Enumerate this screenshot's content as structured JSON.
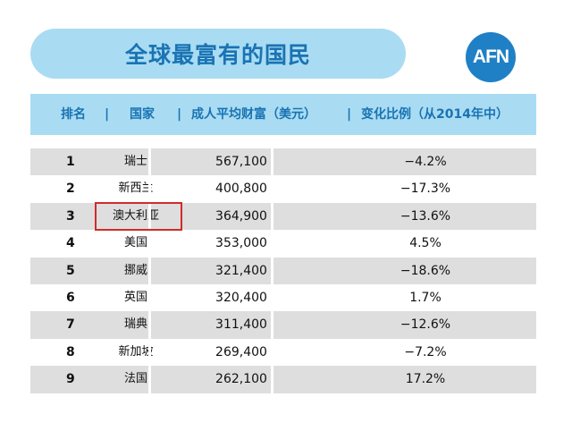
{
  "title": "全球最富有的国民",
  "logo_text": "AFN",
  "header": {
    "rank": "排名",
    "separator": "|",
    "country": "国家",
    "wealth": "成人平均财富（美元）",
    "change": "变化比例（从2014年中）"
  },
  "rows": [
    {
      "rank": "1",
      "country": "瑞士",
      "wealth": "567,100",
      "change": "−4.2%"
    },
    {
      "rank": "2",
      "country": "新西兰",
      "wealth": "400,800",
      "change": "−17.3%"
    },
    {
      "rank": "3",
      "country": "澳大利亚",
      "wealth": "364,900",
      "change": "−13.6%"
    },
    {
      "rank": "4",
      "country": "美国",
      "wealth": "353,000",
      "change": "4.5%"
    },
    {
      "rank": "5",
      "country": "挪威",
      "wealth": "321,400",
      "change": "−18.6%"
    },
    {
      "rank": "6",
      "country": "英国",
      "wealth": "320,400",
      "change": "1.7%"
    },
    {
      "rank": "7",
      "country": "瑞典",
      "wealth": "311,400",
      "change": "−12.6%"
    },
    {
      "rank": "8",
      "country": "新加坡",
      "wealth": "269,400",
      "change": "−7.2%"
    },
    {
      "rank": "9",
      "country": "法国",
      "wealth": "262,100",
      "change": "17.2%"
    }
  ],
  "highlighted_country": "澳大利亚",
  "colors": {
    "accent_light": "#a9dcf3",
    "accent_text": "#1a73b3",
    "logo": "#1f80c6",
    "highlight_border": "#d12b2b",
    "row_alt": "#dedede"
  }
}
